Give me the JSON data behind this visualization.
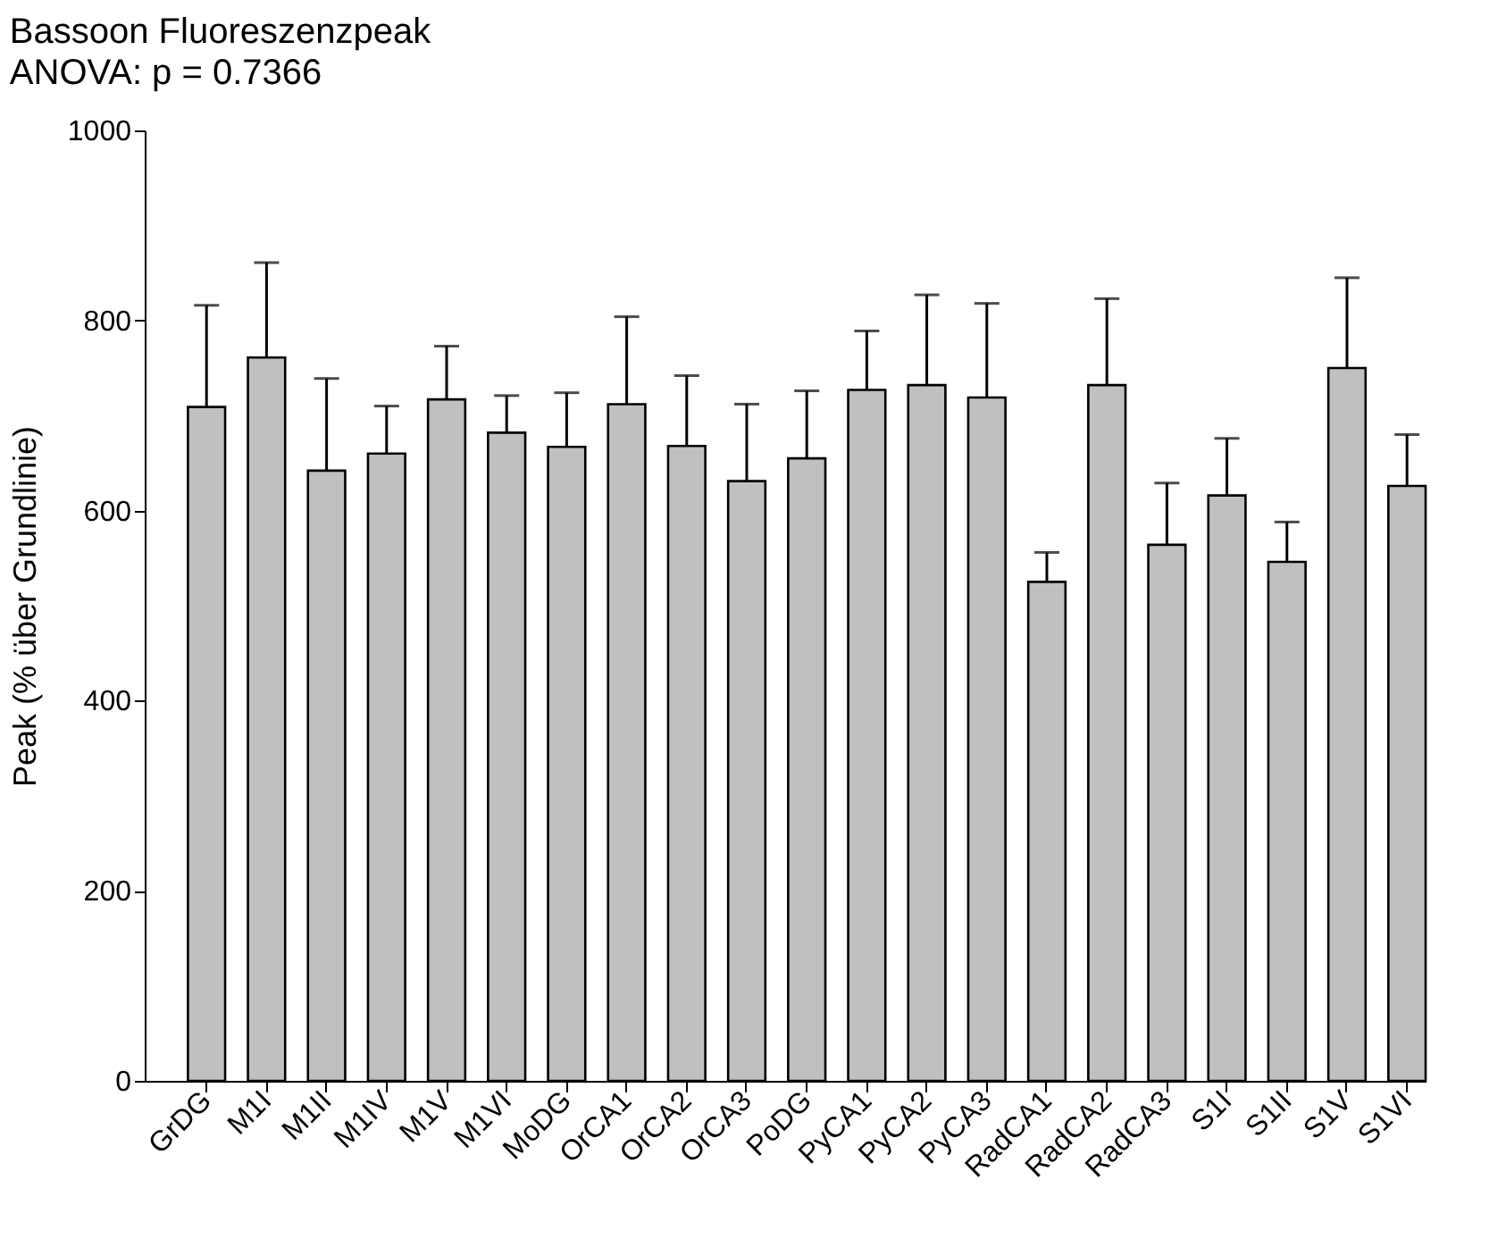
{
  "chart_data": {
    "type": "bar",
    "title": "Bassoon Fluoreszenzpeak",
    "subtitle": "ANOVA: p = 0.7366",
    "ylabel": "Peak (% über Grundlinie)",
    "categories": [
      "GrDG",
      "M1I",
      "M1II",
      "M1IV",
      "M1V",
      "M1VI",
      "MoDG",
      "OrCA1",
      "OrCA2",
      "OrCA3",
      "PoDG",
      "PyCA1",
      "PyCA2",
      "PyCA3",
      "RadCA1",
      "RadCA2",
      "RadCA3",
      "S1I",
      "S1II",
      "S1V",
      "S1VI"
    ],
    "values": [
      709,
      761,
      642,
      660,
      717,
      682,
      667,
      712,
      668,
      631,
      655,
      727,
      732,
      719,
      525,
      732,
      564,
      616,
      546,
      750,
      626
    ],
    "errors": [
      [
        709,
        816
      ],
      [
        761,
        861
      ],
      [
        642,
        739
      ],
      [
        660,
        710
      ],
      [
        717,
        773
      ],
      [
        682,
        721
      ],
      [
        667,
        724
      ],
      [
        712,
        804
      ],
      [
        668,
        742
      ],
      [
        631,
        712
      ],
      [
        655,
        726
      ],
      [
        727,
        789
      ],
      [
        732,
        827
      ],
      [
        719,
        818
      ],
      [
        525,
        556
      ],
      [
        732,
        823
      ],
      [
        564,
        629
      ],
      [
        616,
        676
      ],
      [
        546,
        588
      ],
      [
        750,
        845
      ],
      [
        626,
        680
      ]
    ],
    "color": "#c0c0c0",
    "ylim": [
      0,
      1000
    ],
    "yticks": [
      0,
      200,
      400,
      600,
      800,
      1000
    ],
    "grid": false
  }
}
